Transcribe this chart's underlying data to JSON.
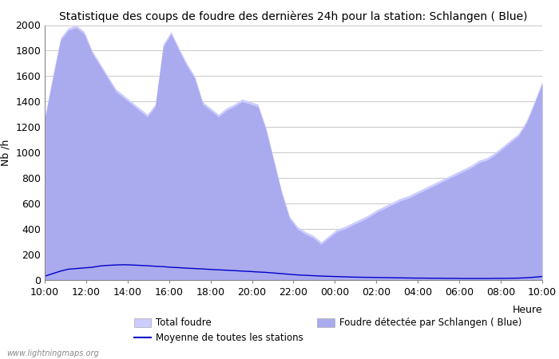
{
  "title": "Statistique des coups de foudre des dernières 24h pour la station: Schlangen ( Blue)",
  "ylabel": "Nb /h",
  "xlabel": "Heure",
  "watermark": "www.lightningmaps.org",
  "ylim": [
    0,
    2000
  ],
  "yticks": [
    0,
    200,
    400,
    600,
    800,
    1000,
    1200,
    1400,
    1600,
    1800,
    2000
  ],
  "xtick_labels": [
    "10:00",
    "12:00",
    "14:00",
    "16:00",
    "18:00",
    "20:00",
    "22:00",
    "00:00",
    "02:00",
    "04:00",
    "06:00",
    "08:00",
    "10:00"
  ],
  "legend_total": "Total foudre",
  "legend_mean": "Moyenne de toutes les stations",
  "legend_local": "Foudre détectée par Schlangen ( Blue)",
  "fill_total_color": "#ccccff",
  "fill_local_color": "#aaaaee",
  "line_mean_color": "#0000cc",
  "total_foudre": [
    1280,
    1600,
    1900,
    1980,
    2000,
    1950,
    1800,
    1700,
    1600,
    1500,
    1450,
    1400,
    1350,
    1300,
    1380,
    1850,
    1950,
    1820,
    1700,
    1600,
    1400,
    1350,
    1300,
    1350,
    1380,
    1420,
    1400,
    1380,
    1200,
    950,
    700,
    500,
    420,
    380,
    350,
    300,
    350,
    400,
    420,
    450,
    480,
    510,
    550,
    580,
    610,
    640,
    660,
    690,
    720,
    750,
    780,
    810,
    840,
    870,
    900,
    940,
    960,
    1000,
    1050,
    1100,
    1150,
    1250,
    1400,
    1560
  ],
  "local_foudre": [
    1260,
    1570,
    1880,
    1960,
    1980,
    1930,
    1780,
    1680,
    1580,
    1480,
    1430,
    1380,
    1330,
    1280,
    1360,
    1830,
    1930,
    1800,
    1680,
    1580,
    1380,
    1330,
    1280,
    1330,
    1360,
    1400,
    1380,
    1360,
    1180,
    930,
    680,
    480,
    400,
    360,
    330,
    280,
    330,
    380,
    400,
    430,
    460,
    490,
    530,
    560,
    590,
    620,
    640,
    670,
    700,
    730,
    760,
    790,
    820,
    850,
    880,
    920,
    940,
    980,
    1030,
    1080,
    1130,
    1230,
    1380,
    1540
  ],
  "mean_foudre": [
    30,
    50,
    70,
    85,
    90,
    95,
    100,
    110,
    115,
    118,
    120,
    118,
    115,
    112,
    108,
    105,
    100,
    97,
    93,
    90,
    87,
    83,
    80,
    77,
    74,
    70,
    67,
    63,
    60,
    55,
    50,
    45,
    40,
    37,
    34,
    31,
    29,
    27,
    25,
    23,
    22,
    21,
    20,
    19,
    18,
    17,
    16,
    15,
    15,
    14,
    14,
    13,
    13,
    12,
    12,
    12,
    12,
    13,
    13,
    14,
    15,
    18,
    22,
    28
  ],
  "n_points": 64,
  "background_color": "#ffffff",
  "grid_color": "#c8c8c8",
  "title_fontsize": 10,
  "axis_fontsize": 9,
  "tick_fontsize": 9
}
